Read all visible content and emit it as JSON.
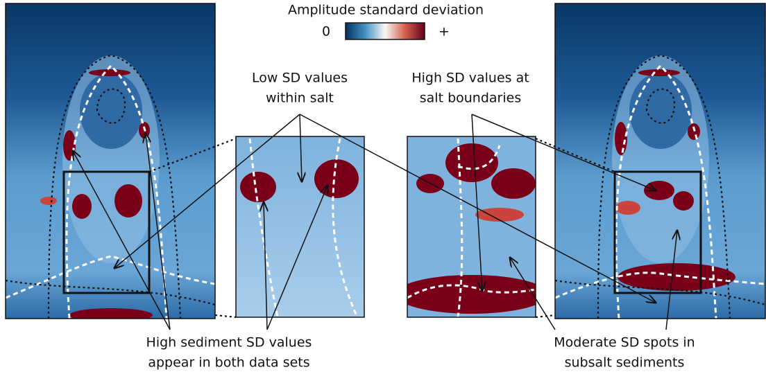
{
  "colorbar": {
    "title": "Amplitude standard deviation",
    "min_label": "0",
    "max_label": "+"
  },
  "annotations": [
    {
      "lines": [
        "Low SD values",
        "within salt"
      ]
    },
    {
      "lines": [
        "High SD values at",
        "salt boundaries"
      ]
    },
    {
      "lines": [
        "High sediment SD values",
        "appear in both data sets"
      ]
    },
    {
      "lines": [
        "Moderate SD spots in",
        "subsalt sediments"
      ]
    }
  ]
}
